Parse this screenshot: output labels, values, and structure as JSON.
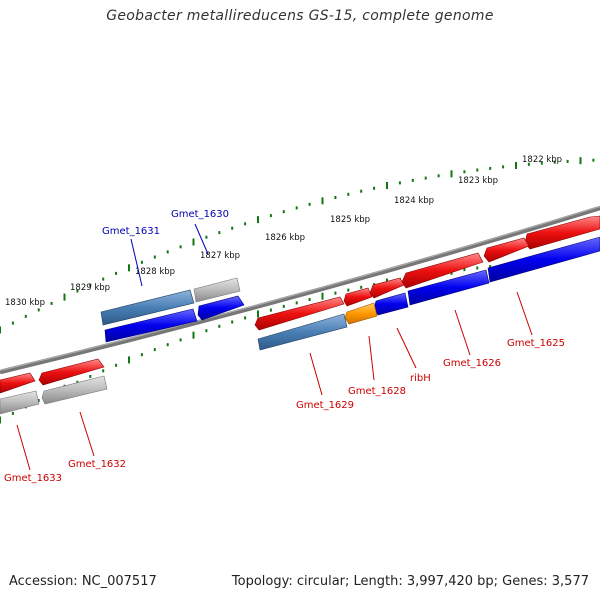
{
  "title": "Geobacter metallireducens GS-15, complete genome",
  "footer": {
    "accession": "Accession: NC_007517",
    "stats": "Topology: circular; Length: 3,997,420 bp; Genes: 3,577"
  },
  "kbp_labels": [
    "1822 kbp",
    "1823 kbp",
    "1824 kbp",
    "1825 kbp",
    "1826 kbp",
    "1827 kbp",
    "1828 kbp",
    "1829 kbp",
    "1830 kbp"
  ],
  "gene_labels": {
    "gmet_1625": "Gmet_1625",
    "gmet_1626": "Gmet_1626",
    "ribh": "ribH",
    "gmet_1628": "Gmet_1628",
    "gmet_1629": "Gmet_1629",
    "gmet_1630": "Gmet_1630",
    "gmet_1631": "Gmet_1631",
    "gmet_1632": "Gmet_1632",
    "gmet_1633": "Gmet_1633"
  },
  "colors": {
    "forward_gene": "#ee1111",
    "reverse_gene": "#0000ee",
    "highlight_gene": "#4a7fb5",
    "rna_gene": "#ff9900",
    "faded_gene": "#bbbbbb",
    "backbone": "#777777",
    "ticks": "#117711"
  }
}
